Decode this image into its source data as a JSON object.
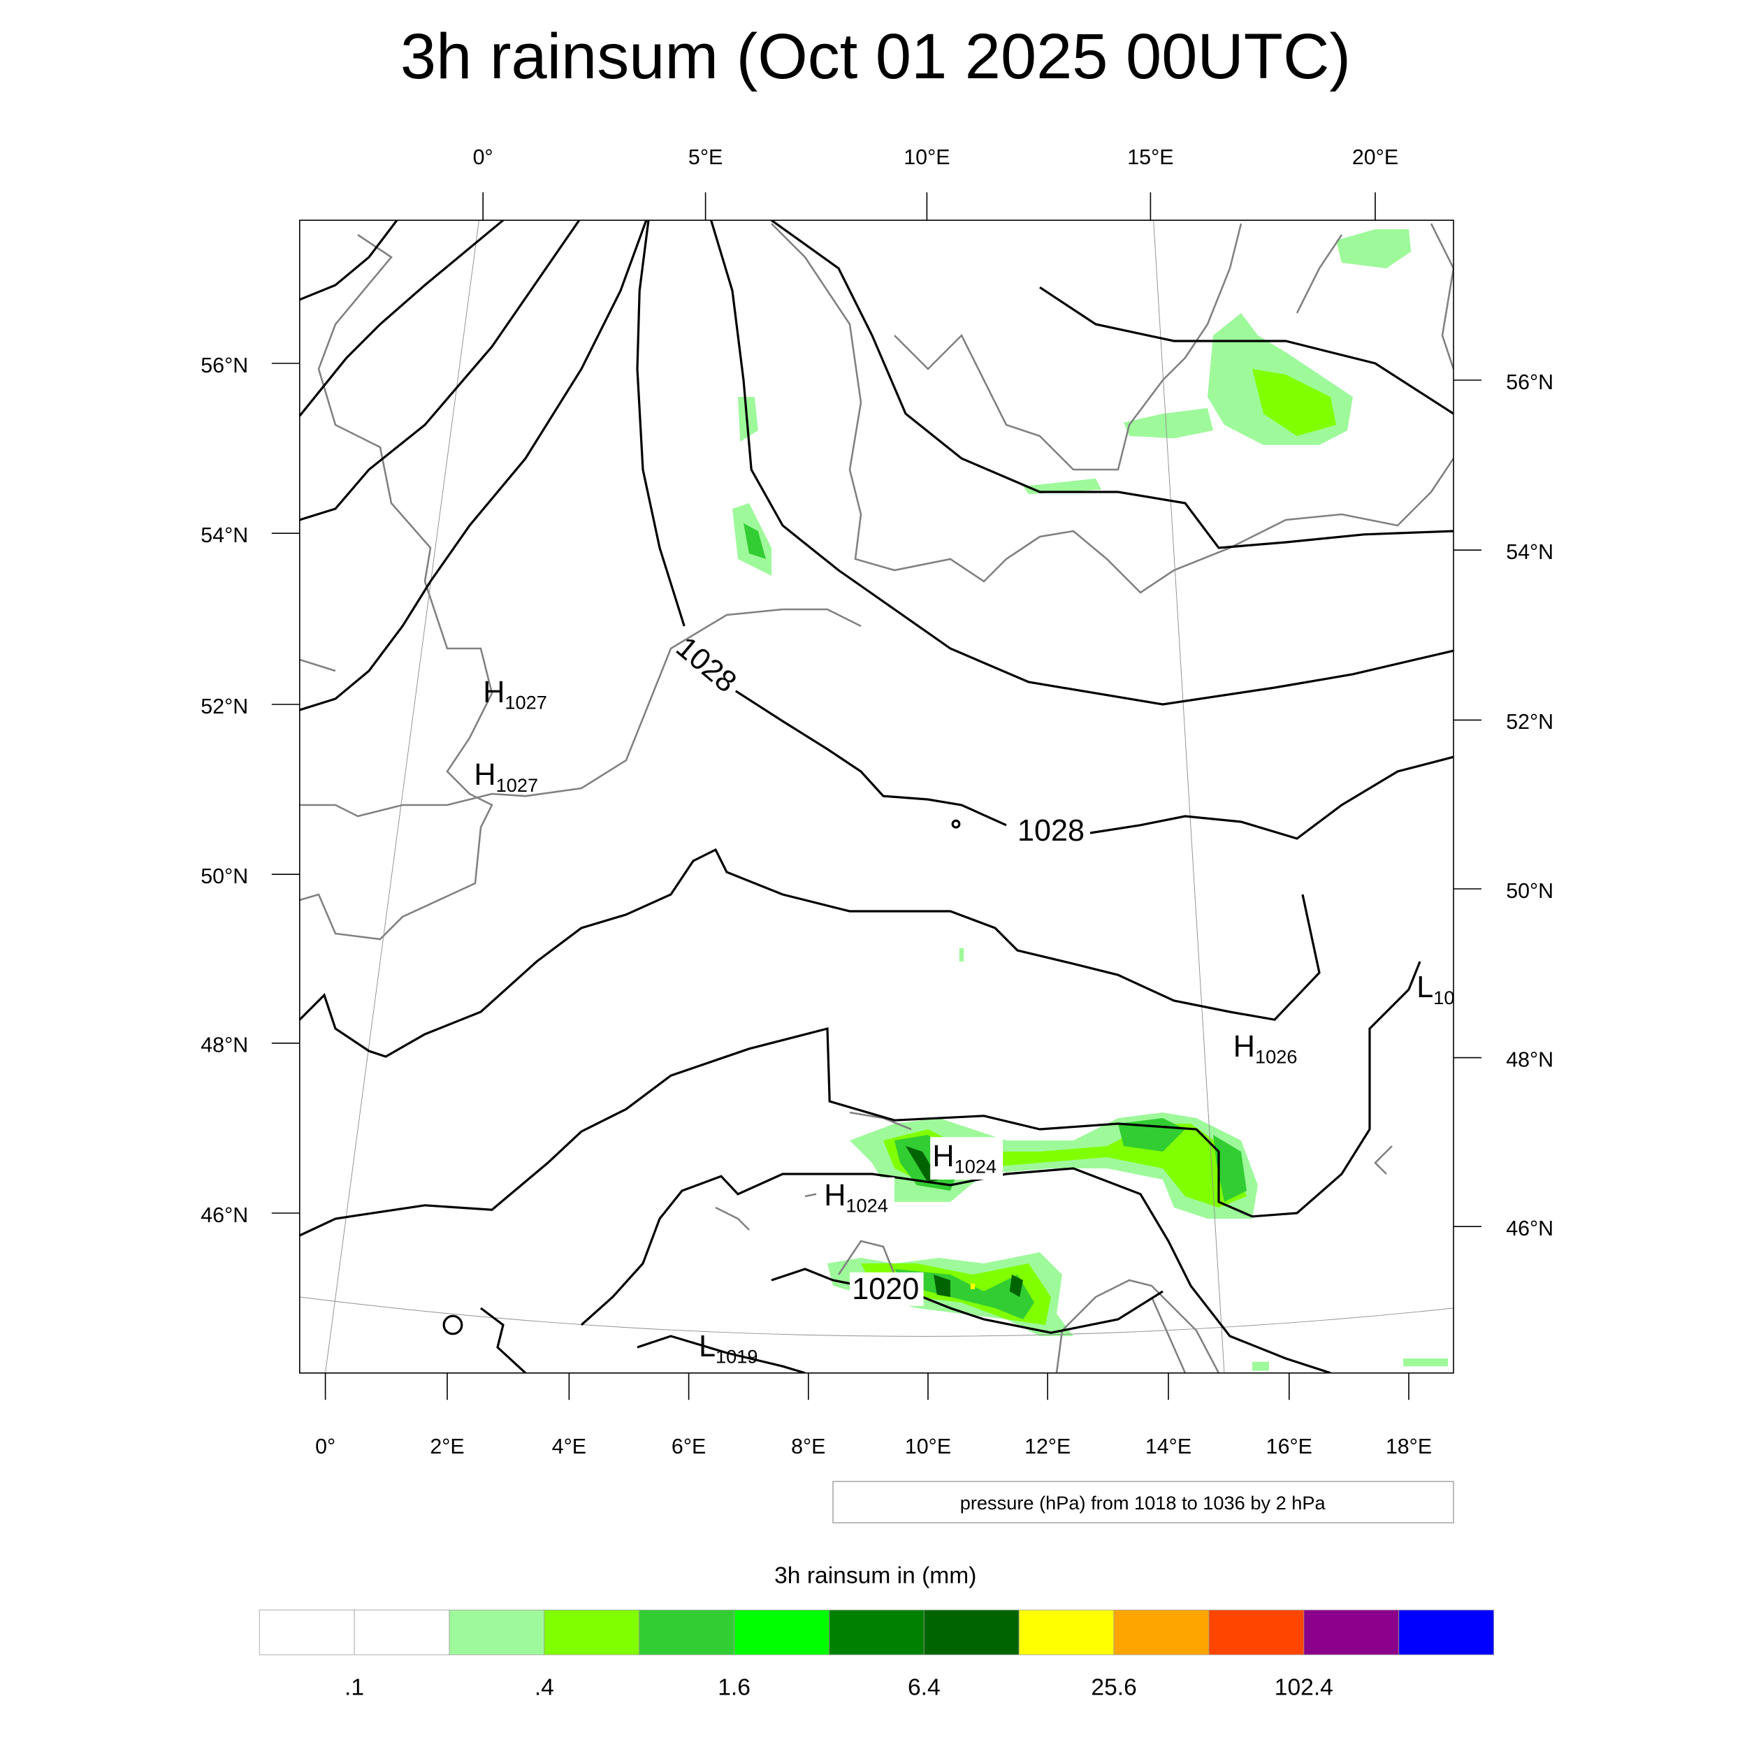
{
  "title": "3h rainsum (Oct 01 2025 00UTC)",
  "map": {
    "top_lon_labels": [
      "0°",
      "5°E",
      "10°E",
      "15°E",
      "20°E"
    ],
    "bottom_lon_labels": [
      "0°",
      "2°E",
      "4°E",
      "6°E",
      "8°E",
      "10°E",
      "12°E",
      "14°E",
      "16°E",
      "18°E"
    ],
    "left_lat_labels": [
      "56°N",
      "54°N",
      "52°N",
      "50°N",
      "48°N",
      "46°N"
    ],
    "right_lat_labels": [
      "56°N",
      "54°N",
      "52°N",
      "50°N",
      "48°N",
      "46°N"
    ],
    "contour_labels": [
      "1028",
      "1028",
      "1020"
    ],
    "pressure_centers": [
      {
        "type": "H",
        "value": "1027"
      },
      {
        "type": "H",
        "value": "1027"
      },
      {
        "type": "H",
        "value": "1026"
      },
      {
        "type": "H",
        "value": "1024"
      },
      {
        "type": "H",
        "value": "1024"
      },
      {
        "type": "L",
        "value": "1019"
      },
      {
        "type": "L",
        "value": "10"
      }
    ],
    "contour_info": "pressure (hPa) from 1018 to 1036 by 2 hPa"
  },
  "colorbar": {
    "title": "3h rainsum in (mm)",
    "colors": [
      "#ffffff",
      "#ffffff",
      "#9ef99a",
      "#80ff00",
      "#32cd32",
      "#00ff00",
      "#008000",
      "#006400",
      "#ffff00",
      "#ffa500",
      "#ff4500",
      "#8b008b",
      "#0000ff"
    ],
    "labels": [
      ".1",
      ".4",
      "1.6",
      "6.4",
      "25.6",
      "102.4"
    ],
    "label_boundaries": [
      1,
      3,
      5,
      7,
      9,
      11
    ]
  }
}
